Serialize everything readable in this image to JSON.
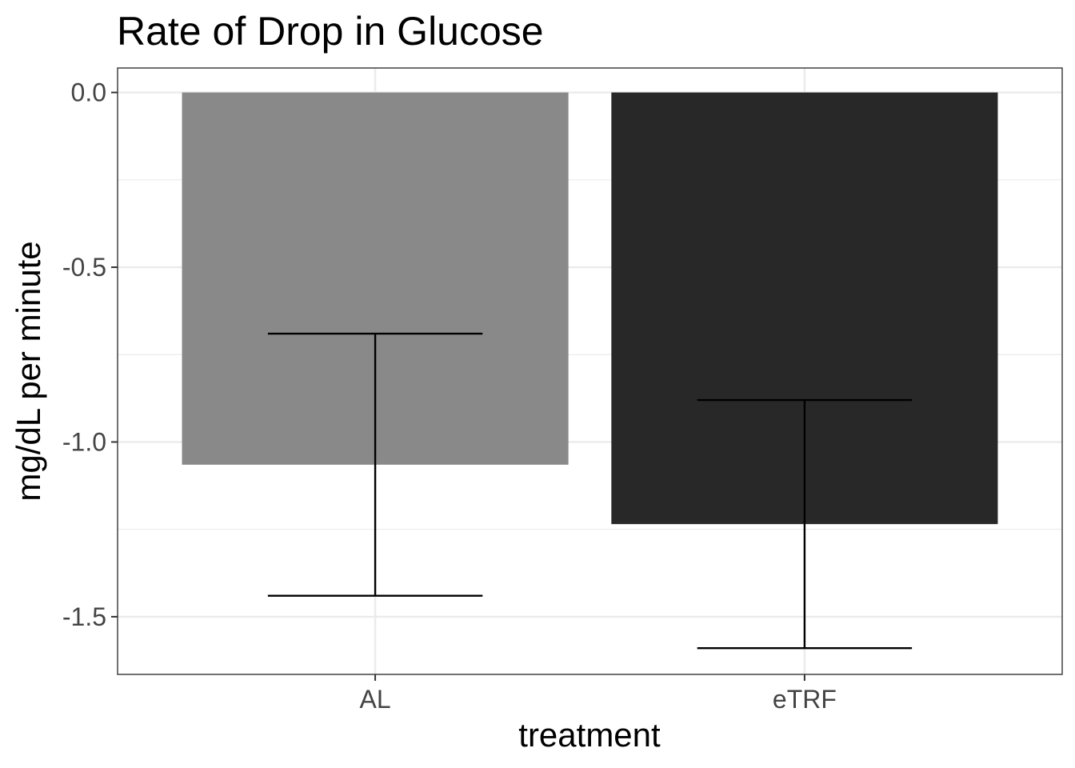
{
  "chart_data": {
    "type": "bar",
    "title": "Rate of Drop in Glucose",
    "xlabel": "treatment",
    "ylabel": "mg/dL per minute",
    "categories": [
      "AL",
      "eTRF"
    ],
    "values": [
      -1.065,
      -1.235
    ],
    "error_bars": [
      {
        "lower": -1.44,
        "upper": -0.69
      },
      {
        "lower": -1.59,
        "upper": -0.88
      }
    ],
    "bar_colors": [
      "#898989",
      "#282828"
    ],
    "ylim": [
      -1.665,
      0.07
    ],
    "y_ticks": [
      0.0,
      -0.5,
      -1.0,
      -1.5
    ],
    "y_tick_labels": [
      "0.0",
      "-0.5",
      "-1.0",
      "-1.5"
    ],
    "grid": true,
    "legend": "none"
  }
}
